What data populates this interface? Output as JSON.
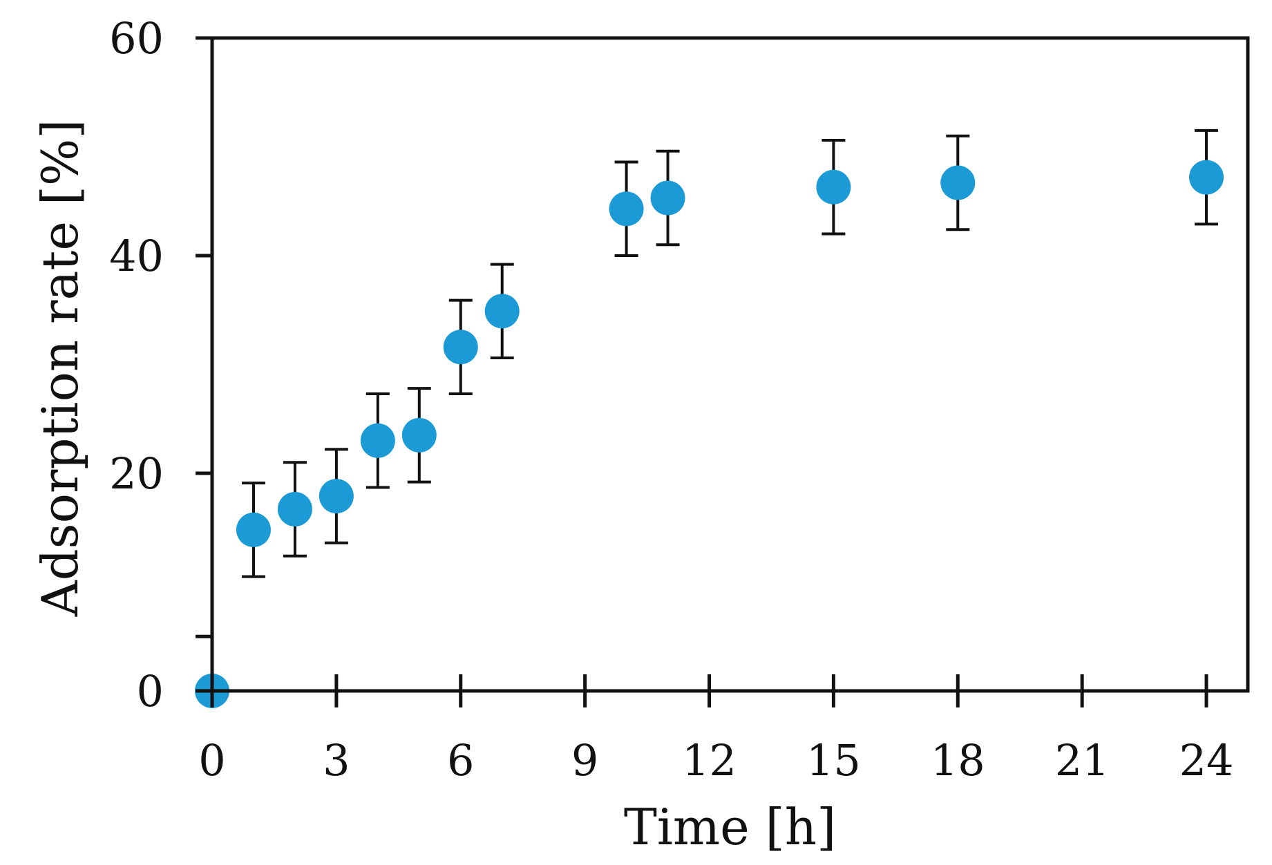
{
  "chart_data": {
    "type": "scatter",
    "title": "",
    "xlabel": "Time [h]",
    "ylabel": "Adsorption rate [%]",
    "xlim": [
      0,
      25
    ],
    "ylim": [
      0,
      60
    ],
    "x_ticks": [
      0,
      3,
      6,
      9,
      12,
      15,
      18,
      21,
      24
    ],
    "x_tick_labels": [
      "0",
      "3",
      "6",
      "9",
      "12",
      "15",
      "18",
      "21",
      "24"
    ],
    "y_ticks": [
      0,
      20,
      40,
      60
    ],
    "y_tick_labels": [
      "0",
      "20",
      "40",
      "60"
    ],
    "y_minor_ticks": [
      5
    ],
    "grid": false,
    "legend": "none",
    "series": [
      {
        "name": "Adsorption rate",
        "color": "#1b9ad6",
        "error_bar_color": "#111111",
        "points": [
          {
            "x": 0,
            "y": 0,
            "err": 0
          },
          {
            "x": 1,
            "y": 14.8,
            "err": 4.3
          },
          {
            "x": 2,
            "y": 16.7,
            "err": 4.3
          },
          {
            "x": 3,
            "y": 17.9,
            "err": 4.3
          },
          {
            "x": 4,
            "y": 23.0,
            "err": 4.3
          },
          {
            "x": 5,
            "y": 23.5,
            "err": 4.3
          },
          {
            "x": 6,
            "y": 31.6,
            "err": 4.3
          },
          {
            "x": 7,
            "y": 34.9,
            "err": 4.3
          },
          {
            "x": 10,
            "y": 44.3,
            "err": 4.3
          },
          {
            "x": 11,
            "y": 45.3,
            "err": 4.3
          },
          {
            "x": 15,
            "y": 46.3,
            "err": 4.3
          },
          {
            "x": 18,
            "y": 46.7,
            "err": 4.3
          },
          {
            "x": 24,
            "y": 47.2,
            "err": 4.3
          }
        ]
      }
    ]
  }
}
